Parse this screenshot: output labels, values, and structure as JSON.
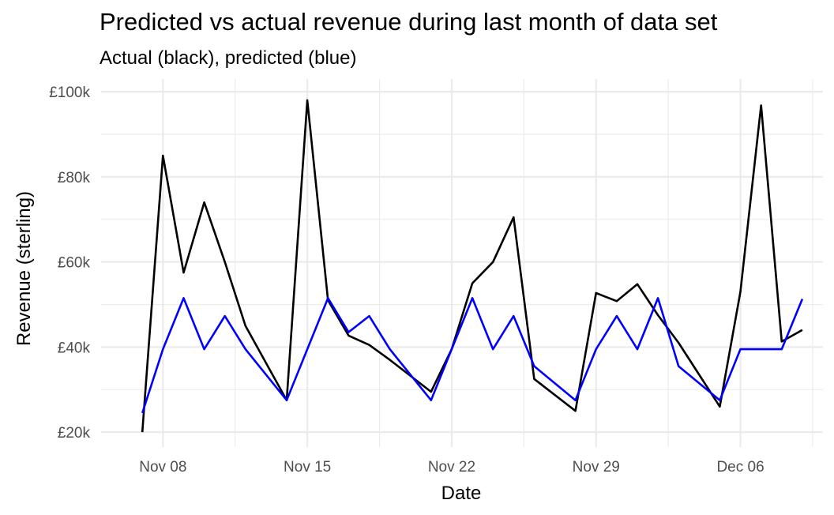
{
  "chart_data": {
    "type": "line",
    "title": "Predicted vs actual revenue during last month of data set",
    "subtitle": "Actual (black), predicted (blue)",
    "xlabel": "Date",
    "ylabel": "Revenue (sterling)",
    "x": [
      "2020-11-07",
      "2020-11-08",
      "2020-11-09",
      "2020-11-10",
      "2020-11-11",
      "2020-11-12",
      "2020-11-14",
      "2020-11-15",
      "2020-11-16",
      "2020-11-17",
      "2020-11-18",
      "2020-11-19",
      "2020-11-21",
      "2020-11-22",
      "2020-11-23",
      "2020-11-24",
      "2020-11-25",
      "2020-11-26",
      "2020-11-28",
      "2020-11-29",
      "2020-11-30",
      "2020-12-01",
      "2020-12-02",
      "2020-12-03",
      "2020-12-05",
      "2020-12-06",
      "2020-12-07",
      "2020-12-08",
      "2020-12-09"
    ],
    "series": [
      {
        "color": "#000000",
        "values": [
          20000,
          85000,
          57500,
          74000,
          60000,
          45000,
          27500,
          98000,
          51000,
          42700,
          40500,
          37000,
          29500,
          39500,
          55000,
          60000,
          70500,
          32500,
          25000,
          52700,
          50800,
          54800,
          47500,
          41000,
          26000,
          53000,
          96800,
          41300,
          44000
        ]
      },
      {
        "color": "#0000ff",
        "values": [
          24500,
          39500,
          51500,
          39500,
          47300,
          39500,
          27500,
          39500,
          51500,
          43500,
          47300,
          39500,
          27500,
          39500,
          51500,
          39500,
          47300,
          35500,
          27500,
          39500,
          47300,
          39500,
          51500,
          35500,
          27500,
          39500,
          39500,
          39500,
          51300
        ]
      }
    ],
    "x_ticks": [
      {
        "date": "2020-11-08",
        "label": "Nov 08"
      },
      {
        "date": "2020-11-15",
        "label": "Nov 15"
      },
      {
        "date": "2020-11-22",
        "label": "Nov 22"
      },
      {
        "date": "2020-11-29",
        "label": "Nov 29"
      },
      {
        "date": "2020-12-06",
        "label": "Dec 06"
      }
    ],
    "y_ticks": [
      {
        "value": 20000,
        "label": "£20k"
      },
      {
        "value": 40000,
        "label": "£40k"
      },
      {
        "value": 60000,
        "label": "£60k"
      },
      {
        "value": 80000,
        "label": "£80k"
      },
      {
        "value": 100000,
        "label": "£100k"
      }
    ],
    "xlim": [
      "2020-11-05",
      "2020-12-10"
    ],
    "ylim": [
      16500,
      103000
    ],
    "grid": true,
    "legend": "none"
  }
}
